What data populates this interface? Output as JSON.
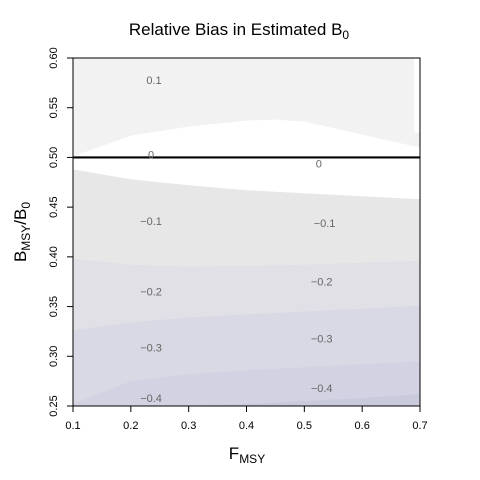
{
  "chart_data": {
    "type": "contour",
    "title": {
      "text": "Relative Bias in Estimated B",
      "subscript": "0"
    },
    "xlabel": {
      "main": "F",
      "subscript": "MSY"
    },
    "ylabel": {
      "main": "B",
      "subscript": "MSY",
      "sep": "/B",
      "subscript2": "0"
    },
    "xlim": [
      0.1,
      0.7
    ],
    "ylim": [
      0.25,
      0.6
    ],
    "x_ticks": [
      "0.1",
      "0.2",
      "0.3",
      "0.4",
      "0.5",
      "0.6",
      "0.7"
    ],
    "y_ticks": [
      "0.25",
      "0.30",
      "0.35",
      "0.40",
      "0.45",
      "0.50",
      "0.55",
      "0.60"
    ],
    "reference_line": {
      "y": 0.5,
      "color": "#000000"
    },
    "levels": [
      0.1,
      0,
      -0.1,
      -0.2,
      -0.3,
      -0.4
    ],
    "bands": [
      {
        "color": "#f2f2f2",
        "boundary": [
          [
            0.1,
            0.6
          ],
          [
            0.69,
            0.6
          ],
          [
            0.69,
            0.525
          ],
          [
            0.7,
            0.525
          ]
        ]
      },
      {
        "color": "#ffffff",
        "boundary": [
          [
            0.1,
            0.501
          ],
          [
            0.7,
            0.501
          ]
        ]
      },
      {
        "color": "#e7e7e7",
        "boundary": [
          [
            0.1,
            0.488
          ],
          [
            0.2,
            0.478
          ],
          [
            0.3,
            0.472
          ],
          [
            0.4,
            0.467
          ],
          [
            0.5,
            0.464
          ],
          [
            0.6,
            0.461
          ],
          [
            0.7,
            0.458
          ]
        ]
      },
      {
        "color": "#e0e0e6",
        "boundary": [
          [
            0.1,
            0.398
          ],
          [
            0.2,
            0.392
          ],
          [
            0.3,
            0.39
          ],
          [
            0.4,
            0.391
          ],
          [
            0.5,
            0.392
          ],
          [
            0.6,
            0.394
          ],
          [
            0.7,
            0.396
          ]
        ]
      },
      {
        "color": "#d9d9e5",
        "boundary": [
          [
            0.1,
            0.326
          ],
          [
            0.2,
            0.334
          ],
          [
            0.3,
            0.339
          ],
          [
            0.4,
            0.342
          ],
          [
            0.5,
            0.345
          ],
          [
            0.6,
            0.348
          ],
          [
            0.7,
            0.351
          ]
        ]
      },
      {
        "color": "#d2d2e2",
        "boundary": [
          [
            0.1,
            0.252
          ],
          [
            0.2,
            0.275
          ],
          [
            0.3,
            0.282
          ],
          [
            0.4,
            0.286
          ],
          [
            0.5,
            0.289
          ],
          [
            0.6,
            0.292
          ],
          [
            0.7,
            0.295
          ]
        ]
      },
      {
        "color": "#cacadd",
        "boundary": [
          [
            0.1,
            0.25
          ],
          [
            0.3,
            0.25
          ],
          [
            0.4,
            0.252
          ],
          [
            0.5,
            0.255
          ],
          [
            0.6,
            0.258
          ],
          [
            0.7,
            0.262
          ]
        ]
      }
    ],
    "zero_contour_upper": [
      [
        0.1,
        0.501
      ],
      [
        0.2,
        0.522
      ],
      [
        0.3,
        0.531
      ],
      [
        0.4,
        0.537
      ],
      [
        0.45,
        0.538
      ],
      [
        0.5,
        0.536
      ],
      [
        0.6,
        0.523
      ],
      [
        0.66,
        0.515
      ],
      [
        0.7,
        0.51
      ]
    ],
    "contour_labels": [
      {
        "text": "0.1",
        "x": 0.24,
        "y": 0.578
      },
      {
        "text": "0",
        "x": 0.235,
        "y": 0.503
      },
      {
        "text": "0",
        "x": 0.525,
        "y": 0.494
      },
      {
        "text": "−0.1",
        "x": 0.235,
        "y": 0.436
      },
      {
        "text": "−0.1",
        "x": 0.535,
        "y": 0.434
      },
      {
        "text": "−0.2",
        "x": 0.235,
        "y": 0.365
      },
      {
        "text": "−0.2",
        "x": 0.53,
        "y": 0.375
      },
      {
        "text": "−0.3",
        "x": 0.235,
        "y": 0.309
      },
      {
        "text": "−0.3",
        "x": 0.53,
        "y": 0.318
      },
      {
        "text": "−0.4",
        "x": 0.235,
        "y": 0.258
      },
      {
        "text": "−0.4",
        "x": 0.53,
        "y": 0.268
      }
    ]
  }
}
